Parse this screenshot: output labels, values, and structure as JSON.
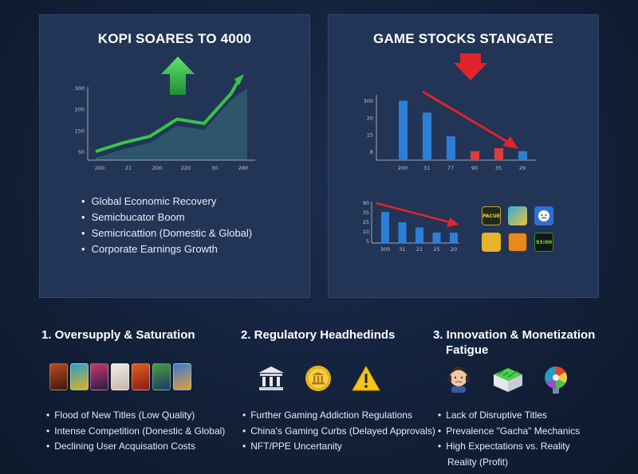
{
  "colors": {
    "background": "#13213a",
    "panel": "#223556",
    "up_green": "#3ac24a",
    "down_red": "#e0242c",
    "bar_blue": "#2d7fd6",
    "bar_red": "#e33a3a"
  },
  "left_panel": {
    "title": "KOPI SOARES TO 4000",
    "bullets": [
      "Global Economic Recovery",
      "Semicbucator Boom",
      "Semicricattion (Domestic & Global)",
      "Corporate Earnings Growth"
    ]
  },
  "right_panel": {
    "title": "GAME STOCKS STANGATE",
    "app_icons": [
      "PACUE",
      "",
      "",
      "",
      "",
      "93:0H"
    ]
  },
  "chart_data": [
    {
      "type": "line",
      "title": "",
      "y_ticks": [
        "300",
        "200",
        "150",
        "50"
      ],
      "x_ticks": [
        "200",
        "21",
        "200",
        "220",
        "30",
        "280"
      ],
      "series": [
        {
          "values": [
            20,
            40,
            55,
            95,
            85,
            155
          ]
        }
      ],
      "trend_arrow": "up"
    },
    {
      "type": "bar",
      "title": "",
      "y_ticks": [
        "300",
        "20",
        "15",
        "8"
      ],
      "x_ticks": [
        "200",
        "31",
        "77",
        "90",
        "35",
        "29"
      ],
      "values": [
        100,
        80,
        40,
        15,
        20,
        15
      ],
      "bar_colors": [
        "#2d7fd6",
        "#2d7fd6",
        "#2d7fd6",
        "#e33a3a",
        "#e33a3a",
        "#2d7fd6"
      ],
      "trend_arrow": "down"
    },
    {
      "type": "bar",
      "title": "",
      "y_ticks": [
        "90",
        "35",
        "25",
        "10",
        "5"
      ],
      "x_ticks": [
        "300",
        "31",
        "21",
        "25",
        "20"
      ],
      "values": [
        6,
        4,
        3,
        2,
        2
      ],
      "trend_arrow": "down"
    }
  ],
  "sections": [
    {
      "title_line1": "1. Oversupply & Saturation",
      "title_line2": "",
      "items": [
        "Flood of New Titles (Low Quality)",
        "Intense Competition (Donestic & Global)",
        "Declining User Acquisation Costs"
      ],
      "thumbnails": [
        "#7a2a1a",
        "#1f6a8a",
        "#8a2a5a",
        "#d8d0c8",
        "#c83a1a",
        "#3a7a2a",
        "#2a5a9a"
      ]
    },
    {
      "title_line1": "2. Regulatory Headhedinds",
      "title_line2": "",
      "items": [
        "Further Gaming Addiction Regulations",
        "China's Gaming Curbs (Delayed Approvals)",
        "NFT/PPE Uncertanity"
      ],
      "icons": [
        "building-icon",
        "coin-icon",
        "warning-icon"
      ]
    },
    {
      "title_line1": "3. Innovation & Monetization",
      "title_line2": "Fatigue",
      "items": [
        "Lack of Disruptive Titles",
        "Prevalence \"Gacha\" Mechanics",
        "High Expectations vs. Reality",
        "Reality (Profit)"
      ],
      "icons": [
        "gamer-headset-icon",
        "green-box-icon",
        "roulette-wheel-icon"
      ]
    }
  ]
}
